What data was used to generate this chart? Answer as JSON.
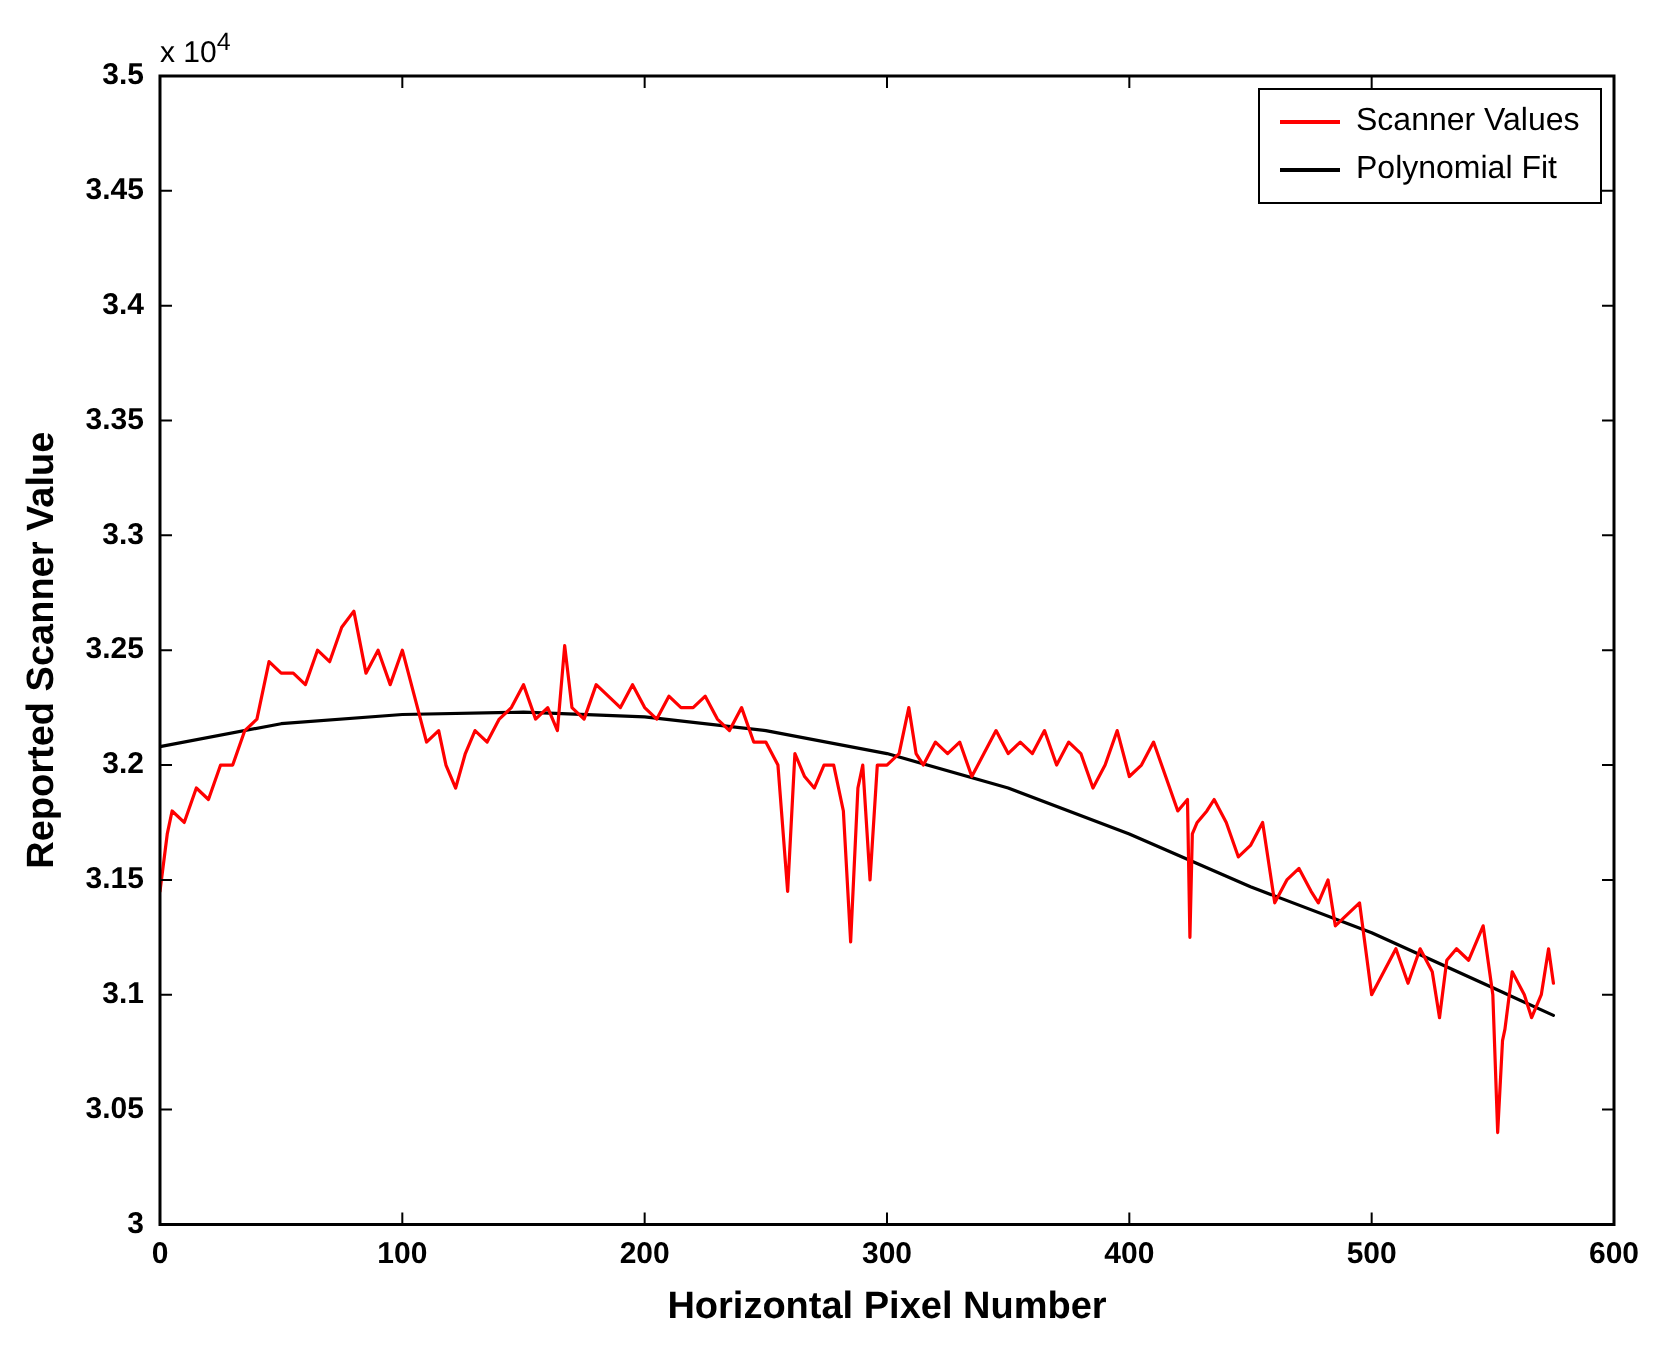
{
  "chart_data": {
    "type": "line",
    "xlabel": "Horizontal Pixel Number",
    "ylabel": "Reported Scanner Value",
    "annotations": [
      "x 10$^{4}$"
    ],
    "xlim": [
      0,
      600
    ],
    "xticks": [
      0,
      100,
      200,
      300,
      400,
      500,
      600
    ],
    "ylim": [
      3,
      3.5
    ],
    "yticks": [
      3,
      3.05,
      3.1,
      3.15,
      3.2,
      3.25,
      3.3,
      3.35,
      3.4,
      3.45,
      3.5
    ],
    "grid": false,
    "legend": "top right",
    "marker": "none",
    "line_style": "solid",
    "series": [
      {
        "name": "Scanner Values",
        "color": "#ff0000",
        "x": [
          0,
          3,
          5,
          10,
          15,
          20,
          25,
          30,
          35,
          40,
          45,
          50,
          55,
          60,
          65,
          70,
          75,
          80,
          85,
          90,
          95,
          100,
          105,
          110,
          115,
          118,
          122,
          126,
          130,
          135,
          140,
          145,
          150,
          155,
          160,
          164,
          167,
          170,
          175,
          180,
          185,
          190,
          195,
          200,
          205,
          210,
          215,
          220,
          225,
          230,
          235,
          240,
          245,
          250,
          255,
          259,
          262,
          266,
          270,
          274,
          278,
          282,
          285,
          288,
          290,
          293,
          296,
          300,
          305,
          309,
          312,
          315,
          320,
          325,
          330,
          335,
          340,
          345,
          350,
          355,
          360,
          365,
          370,
          375,
          380,
          385,
          390,
          395,
          400,
          405,
          410,
          415,
          420,
          424,
          425,
          426,
          428,
          432,
          435,
          440,
          445,
          450,
          455,
          460,
          465,
          470,
          475,
          478,
          482,
          485,
          490,
          495,
          500,
          505,
          510,
          515,
          520,
          525,
          528,
          531,
          535,
          540,
          546,
          550,
          552,
          554,
          555,
          558,
          563,
          566,
          570,
          573,
          575
        ],
        "values": [
          3.145,
          3.17,
          3.18,
          3.175,
          3.19,
          3.185,
          3.2,
          3.2,
          3.215,
          3.22,
          3.245,
          3.24,
          3.24,
          3.235,
          3.25,
          3.245,
          3.26,
          3.267,
          3.24,
          3.25,
          3.235,
          3.25,
          3.23,
          3.21,
          3.215,
          3.2,
          3.19,
          3.205,
          3.215,
          3.21,
          3.22,
          3.225,
          3.235,
          3.22,
          3.225,
          3.215,
          3.252,
          3.225,
          3.22,
          3.235,
          3.23,
          3.225,
          3.235,
          3.225,
          3.22,
          3.23,
          3.225,
          3.225,
          3.23,
          3.22,
          3.215,
          3.225,
          3.21,
          3.21,
          3.2,
          3.145,
          3.205,
          3.195,
          3.19,
          3.2,
          3.2,
          3.18,
          3.123,
          3.19,
          3.2,
          3.15,
          3.2,
          3.2,
          3.205,
          3.225,
          3.205,
          3.2,
          3.21,
          3.205,
          3.21,
          3.195,
          3.205,
          3.215,
          3.205,
          3.21,
          3.205,
          3.215,
          3.2,
          3.21,
          3.205,
          3.19,
          3.2,
          3.215,
          3.195,
          3.2,
          3.21,
          3.195,
          3.18,
          3.185,
          3.125,
          3.17,
          3.175,
          3.18,
          3.185,
          3.175,
          3.16,
          3.165,
          3.175,
          3.14,
          3.15,
          3.155,
          3.145,
          3.14,
          3.15,
          3.13,
          3.135,
          3.14,
          3.1,
          3.11,
          3.12,
          3.105,
          3.12,
          3.11,
          3.09,
          3.115,
          3.12,
          3.115,
          3.13,
          3.1,
          3.04,
          3.08,
          3.085,
          3.11,
          3.1,
          3.09,
          3.1,
          3.12,
          3.105
        ]
      },
      {
        "name": "Polynomial Fit",
        "color": "#000000",
        "x": [
          0,
          50,
          100,
          150,
          200,
          250,
          300,
          350,
          400,
          450,
          500,
          550,
          575
        ],
        "values": [
          3.208,
          3.218,
          3.222,
          3.223,
          3.221,
          3.215,
          3.205,
          3.19,
          3.17,
          3.147,
          3.127,
          3.103,
          3.091
        ]
      }
    ]
  }
}
